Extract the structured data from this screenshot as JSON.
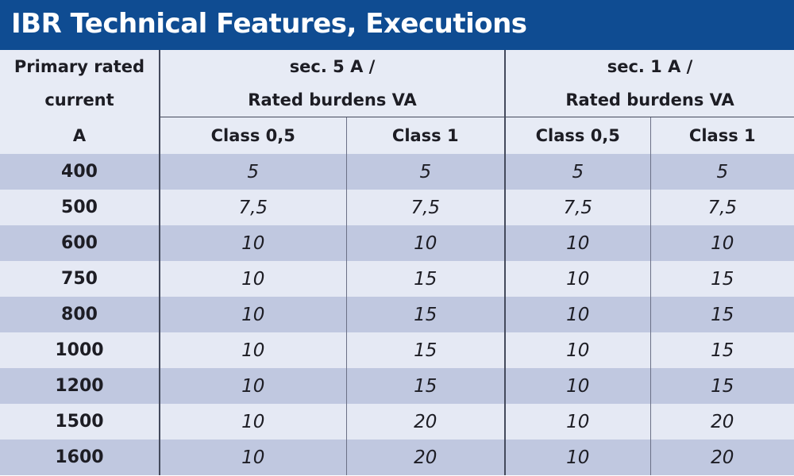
{
  "title": "IBR Technical Features, Executions",
  "header": {
    "primary_line1": "Primary rated",
    "primary_line2": "current",
    "primary_line3": "A",
    "group1_line1": "sec. 5 A /",
    "group1_line2": "Rated burdens VA",
    "group2_line1": "sec. 1 A /",
    "group2_line2": "Rated burdens VA",
    "sub": [
      "Class 0,5",
      "Class 1",
      "Class 0,5",
      "Class 1"
    ]
  },
  "rows": [
    {
      "primary": "400",
      "values": [
        "5",
        "5",
        "5",
        "5"
      ]
    },
    {
      "primary": "500",
      "values": [
        "7,5",
        "7,5",
        "7,5",
        "7,5"
      ]
    },
    {
      "primary": "600",
      "values": [
        "10",
        "10",
        "10",
        "10"
      ]
    },
    {
      "primary": "750",
      "values": [
        "10",
        "15",
        "10",
        "15"
      ]
    },
    {
      "primary": "800",
      "values": [
        "10",
        "15",
        "10",
        "15"
      ]
    },
    {
      "primary": "1000",
      "values": [
        "10",
        "15",
        "10",
        "15"
      ]
    },
    {
      "primary": "1200",
      "values": [
        "10",
        "15",
        "10",
        "15"
      ]
    },
    {
      "primary": "1500",
      "values": [
        "10",
        "20",
        "10",
        "20"
      ]
    },
    {
      "primary": "1600",
      "values": [
        "10",
        "20",
        "10",
        "20"
      ]
    }
  ],
  "colors": {
    "title_bg": "#0f4c92",
    "row_dark": "#c0c8e0",
    "row_light": "#e5e9f4",
    "header_bg": "#e7ebf5"
  }
}
